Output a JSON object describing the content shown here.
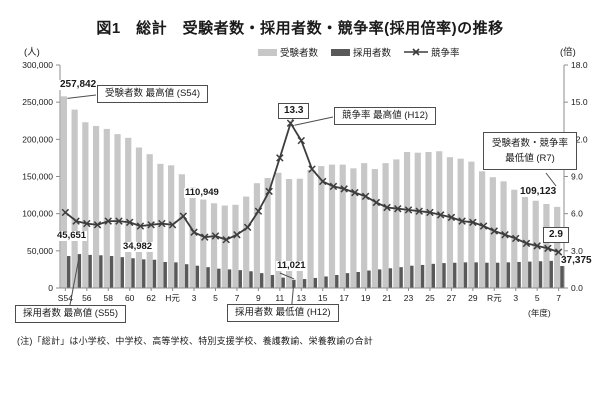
{
  "page": {
    "title": "図1　総計　受験者数・採用者数・競争率(採用倍率)の推移",
    "note": "(注)「総計」は小学校、中学校、高等学校、特別支援学校、養護教諭、栄養教諭の合計"
  },
  "legend": {
    "examinees": "受験者数",
    "hires": "採用者数",
    "rate": "競争率"
  },
  "axes": {
    "left_unit": "(人)",
    "right_unit": "(倍)",
    "x_unit": "(年度)",
    "left_ticks": [
      "300,000",
      "250,000",
      "200,000",
      "150,000",
      "100,000",
      "50,000",
      "0"
    ],
    "right_ticks": [
      "18.0",
      "15.0",
      "12.0",
      "9.0",
      "6.0",
      "3.0",
      "0.0"
    ],
    "x_tick_labels": [
      "S54",
      "56",
      "58",
      "60",
      "62",
      "H元",
      "3",
      "5",
      "7",
      "9",
      "11",
      "13",
      "15",
      "17",
      "19",
      "21",
      "23",
      "25",
      "27",
      "29",
      "R元",
      "3",
      "5",
      "7"
    ]
  },
  "colors": {
    "examinees_bar": "#c7c7c7",
    "hires_bar": "#595959",
    "rate_line": "#3d3d3d",
    "axis": "#8c8c8c",
    "text": "#1a1a1a"
  },
  "annotations": {
    "examinees_max": {
      "box": "受験者数 最高値 (S54)",
      "value": "257,842",
      "year": "S54"
    },
    "hires_max": {
      "box": "採用者数 最高値 (S55)",
      "value": "45,651",
      "year": "S55"
    },
    "hires_min": {
      "box": "採用者数 最低値 (H12)",
      "value": "11,021",
      "year": "H12"
    },
    "rate_max": {
      "box": "競争率 最高値 (H12)",
      "value": "13.3",
      "year": "H12"
    },
    "hires_s63": {
      "value": "34,982",
      "year": "S63"
    },
    "examinees_h6": {
      "value": "110,949",
      "year": "H6"
    },
    "r7_min": {
      "box_line1": "受験者数・競争率",
      "box_line2": "最低値 (R7)",
      "examinees_value": "109,123",
      "rate_value": "2.9",
      "hires_value": "37,375",
      "year": "R7"
    }
  },
  "chart_data": {
    "type": "bar+line combo",
    "title": "図1 総計 受験者数・採用者数・競争率(採用倍率)の推移",
    "x_unit": "年度",
    "categories": [
      "S54",
      "S55",
      "S56",
      "S57",
      "S58",
      "S59",
      "S60",
      "S61",
      "S62",
      "S63",
      "H元",
      "H2",
      "H3",
      "H4",
      "H5",
      "H6",
      "H7",
      "H8",
      "H9",
      "H10",
      "H11",
      "H12",
      "H13",
      "H14",
      "H15",
      "H16",
      "H17",
      "H18",
      "H19",
      "H20",
      "H21",
      "H22",
      "H23",
      "H24",
      "H25",
      "H26",
      "H27",
      "H28",
      "H29",
      "H30",
      "R元",
      "R2",
      "R3",
      "R4",
      "R5",
      "R6",
      "R7"
    ],
    "series": [
      {
        "name": "受験者数",
        "type": "bar",
        "axis": "left",
        "values": [
          257842,
          240000,
          223000,
          218000,
          214000,
          207000,
          202000,
          189000,
          180000,
          167000,
          165000,
          153000,
          135000,
          119000,
          114000,
          110949,
          112000,
          123000,
          141000,
          148000,
          155000,
          146600,
          147000,
          159000,
          164000,
          166000,
          166000,
          161000,
          168000,
          160000,
          168000,
          173000,
          183000,
          182000,
          183000,
          184000,
          176000,
          174000,
          170000,
          157000,
          149000,
          143500,
          132200,
          123300,
          117400,
          113000,
          109123
        ]
      },
      {
        "name": "採用者数",
        "type": "bar",
        "axis": "left",
        "values": [
          43000,
          45651,
          44500,
          44000,
          43000,
          41500,
          40000,
          38500,
          38000,
          34982,
          34500,
          32000,
          30000,
          28000,
          26000,
          25000,
          24000,
          22500,
          20000,
          17500,
          14000,
          11021,
          12000,
          13500,
          15500,
          17500,
          20000,
          21500,
          23500,
          25000,
          26500,
          28000,
          30000,
          31000,
          32500,
          33500,
          34000,
          34500,
          34500,
          34000,
          34000,
          34500,
          35000,
          35500,
          36000,
          36500,
          37375
        ]
      },
      {
        "name": "競争率",
        "type": "line",
        "axis": "right",
        "values": [
          6.1,
          5.4,
          5.2,
          5.1,
          5.4,
          5.4,
          5.3,
          5.0,
          5.1,
          5.2,
          5.1,
          5.8,
          4.5,
          4.1,
          4.2,
          3.9,
          4.3,
          4.9,
          6.2,
          7.8,
          10.5,
          13.3,
          11.9,
          9.6,
          8.6,
          8.2,
          8.0,
          7.7,
          7.4,
          6.9,
          6.5,
          6.4,
          6.3,
          6.2,
          6.1,
          5.9,
          5.7,
          5.4,
          5.3,
          5.0,
          4.6,
          4.3,
          4.0,
          3.6,
          3.4,
          3.2,
          2.9
        ]
      }
    ],
    "left_axis": {
      "label": "人",
      "min": 0,
      "max": 300000,
      "tick_step": 50000
    },
    "right_axis": {
      "label": "倍",
      "min": 0,
      "max": 18,
      "tick_step": 3
    },
    "grid": false,
    "legend_position": "top"
  }
}
